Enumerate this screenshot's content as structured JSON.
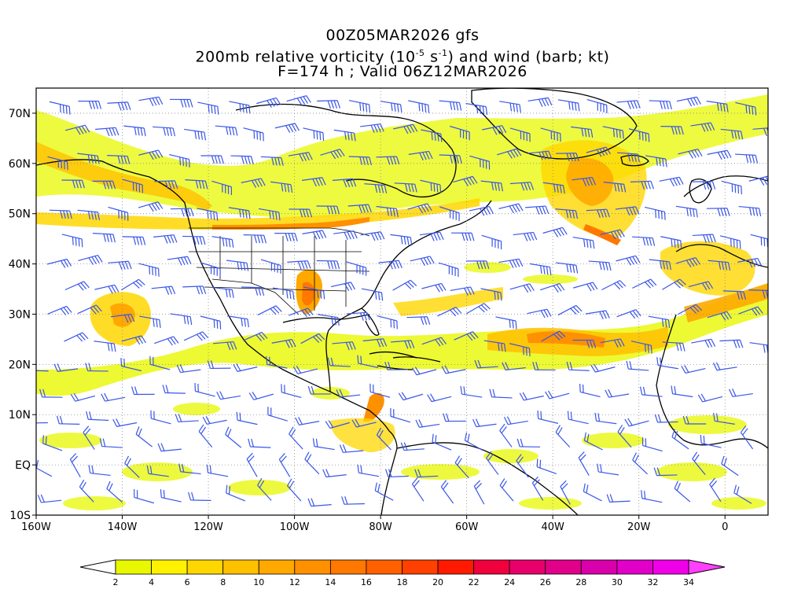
{
  "title": {
    "line1": "00Z05MAR2026 gfs",
    "line2_pre": "200mb relative vorticity (10",
    "line2_exp1": "-5",
    "line2_mid": " s",
    "line2_exp2": "-1",
    "line2_post": ") and wind (barb; kt)",
    "line3": "F=174 h ; Valid 06Z12MAR2026"
  },
  "axes": {
    "lat_labels": [
      "70N",
      "60N",
      "50N",
      "40N",
      "30N",
      "20N",
      "10N",
      "EQ",
      "10S"
    ],
    "lat_values": [
      70,
      60,
      50,
      40,
      30,
      20,
      10,
      0,
      -10
    ],
    "lon_labels": [
      "160W",
      "140W",
      "120W",
      "100W",
      "80W",
      "60W",
      "40W",
      "20W",
      "0"
    ],
    "lon_values": [
      -160,
      -140,
      -120,
      -100,
      -80,
      -60,
      -40,
      -20,
      0
    ],
    "lon_range": [
      -160,
      10
    ],
    "lat_range": [
      -10,
      75
    ],
    "grid": "dotted"
  },
  "colorbar": {
    "labels": [
      "2",
      "4",
      "6",
      "8",
      "10",
      "12",
      "14",
      "16",
      "18",
      "20",
      "22",
      "24",
      "26",
      "28",
      "30",
      "32",
      "34"
    ],
    "colors": [
      "#e8f800",
      "#fff200",
      "#ffd700",
      "#ffc000",
      "#ffa800",
      "#ff9000",
      "#ff7800",
      "#ff6000",
      "#ff4000",
      "#ff1a00",
      "#f0003c",
      "#e8006a",
      "#e0008a",
      "#d800aa",
      "#e000c8",
      "#f000e8"
    ]
  },
  "colors": {
    "barb": "#3a56e8",
    "coast": "#000000",
    "land_fill": "none"
  }
}
